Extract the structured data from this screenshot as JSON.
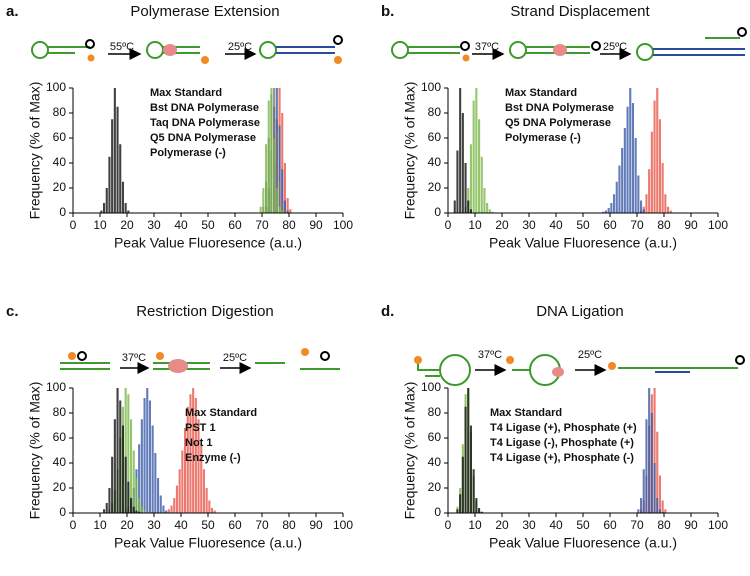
{
  "chart_data": [
    {
      "type": "histogram",
      "panel": "a.",
      "title": "Polymerase Extension",
      "annotations": [
        "55ºC",
        "25ºC"
      ],
      "x_label": "Peak Value Fluoresence (a.u.)",
      "y_label": "Frequency (% of Max)",
      "xlim": [
        0,
        100
      ],
      "xticks": [
        0,
        10,
        20,
        30,
        40,
        50,
        60,
        70,
        80,
        90,
        100
      ],
      "ylim": [
        0,
        100
      ],
      "yticks": [
        0,
        20,
        40,
        60,
        80,
        100
      ],
      "series": [
        {
          "name": "Max Standard",
          "color": "#e8574a",
          "bins": [
            72,
            73,
            74,
            75,
            76,
            77,
            78,
            79,
            80,
            81
          ],
          "values": [
            5,
            15,
            40,
            75,
            100,
            80,
            40,
            12,
            3
          ]
        },
        {
          "name": "Bst DNA Polymerase",
          "color": "#3a5ba8",
          "bins": [
            71,
            72,
            73,
            74,
            75,
            76,
            77,
            78,
            79,
            80
          ],
          "values": [
            5,
            20,
            50,
            85,
            100,
            70,
            35,
            10,
            2
          ]
        },
        {
          "name": "Taq DNA Polymerase",
          "color": "#777777",
          "bins": [
            70,
            71,
            72,
            73,
            74,
            75,
            76,
            77,
            78,
            79
          ],
          "values": [
            5,
            25,
            60,
            95,
            100,
            65,
            25,
            8,
            2
          ]
        },
        {
          "name": "Q5 DNA Polymerase",
          "color": "#7ab648",
          "bins": [
            69,
            70,
            71,
            72,
            73,
            74,
            75,
            76,
            77,
            78
          ],
          "values": [
            5,
            20,
            55,
            90,
            100,
            60,
            20,
            5,
            2
          ]
        },
        {
          "name": "Polymerase (-)",
          "color": "#111111",
          "bins": [
            10,
            11,
            12,
            13,
            14,
            15,
            16,
            17,
            18,
            19,
            20,
            21
          ],
          "values": [
            2,
            8,
            20,
            45,
            75,
            100,
            85,
            55,
            25,
            8,
            2
          ]
        }
      ]
    },
    {
      "type": "histogram",
      "panel": "b.",
      "title": "Strand Displacement",
      "annotations": [
        "37ºC",
        "25ºC"
      ],
      "x_label": "Peak Value Fluoresence (a.u.)",
      "y_label": "Frequency (% of Max)",
      "xlim": [
        0,
        100
      ],
      "xticks": [
        0,
        10,
        20,
        30,
        40,
        50,
        60,
        70,
        80,
        90,
        100
      ],
      "ylim": [
        0,
        100
      ],
      "yticks": [
        0,
        20,
        40,
        60,
        80,
        100
      ],
      "series": [
        {
          "name": "Max Standard",
          "color": "#e8574a",
          "bins": [
            71,
            72,
            73,
            74,
            75,
            76,
            77,
            78,
            79,
            80,
            81,
            82,
            83
          ],
          "values": [
            2,
            5,
            15,
            35,
            65,
            90,
            100,
            75,
            40,
            15,
            5,
            2
          ]
        },
        {
          "name": "Bst DNA Polymerase",
          "color": "#3a5ba8",
          "bins": [
            57,
            58,
            59,
            60,
            61,
            62,
            63,
            64,
            65,
            66,
            67,
            68,
            69,
            70,
            71,
            72,
            73
          ],
          "values": [
            1,
            2,
            4,
            8,
            15,
            25,
            38,
            52,
            68,
            85,
            100,
            88,
            60,
            30,
            10,
            3
          ]
        },
        {
          "name": "Q5 DNA Polymerase",
          "color": "#7ab648",
          "bins": [
            6,
            7,
            8,
            9,
            10,
            11,
            12,
            13,
            14,
            15,
            16,
            17
          ],
          "values": [
            5,
            20,
            55,
            90,
            100,
            75,
            45,
            20,
            8,
            3,
            1
          ]
        },
        {
          "name": "Polymerase (-)",
          "color": "#111111",
          "bins": [
            2,
            3,
            4,
            5,
            6,
            7,
            8,
            9
          ],
          "values": [
            10,
            50,
            100,
            80,
            40,
            10,
            3
          ]
        }
      ]
    },
    {
      "type": "histogram",
      "panel": "c.",
      "title": "Restriction Digestion",
      "annotations": [
        "37ºC",
        "25ºC"
      ],
      "x_label": "Peak Value Fluoresence (a.u.)",
      "y_label": "Frequency (% of Max)",
      "xlim": [
        0,
        100
      ],
      "xticks": [
        0,
        10,
        20,
        30,
        40,
        50,
        60,
        70,
        80,
        90,
        100
      ],
      "ylim": [
        0,
        100
      ],
      "yticks": [
        0,
        20,
        40,
        60,
        80,
        100
      ],
      "series": [
        {
          "name": "Max Standard",
          "color": "#e8574a",
          "bins": [
            34,
            35,
            36,
            37,
            38,
            39,
            40,
            41,
            42,
            43,
            44,
            45,
            46,
            47,
            48,
            49,
            50,
            51,
            52,
            53
          ],
          "values": [
            1,
            3,
            6,
            12,
            22,
            35,
            50,
            68,
            85,
            95,
            100,
            92,
            75,
            55,
            35,
            20,
            10,
            4,
            2
          ]
        },
        {
          "name": "PST 1",
          "color": "#3a5ba8",
          "bins": [
            19,
            20,
            21,
            22,
            23,
            24,
            25,
            26,
            27,
            28,
            29,
            30,
            31,
            32,
            33,
            34,
            35
          ],
          "values": [
            2,
            5,
            10,
            20,
            35,
            55,
            75,
            92,
            100,
            90,
            70,
            48,
            28,
            14,
            6,
            2
          ]
        },
        {
          "name": "Not 1",
          "color": "#7ab648",
          "bins": [
            13,
            14,
            15,
            16,
            17,
            18,
            19,
            20,
            21,
            22,
            23,
            24,
            25,
            26,
            27
          ],
          "values": [
            3,
            8,
            18,
            35,
            60,
            85,
            100,
            95,
            75,
            50,
            28,
            12,
            5,
            2
          ]
        },
        {
          "name": "Enzyme (-)",
          "color": "#111111",
          "bins": [
            11,
            12,
            13,
            14,
            15,
            16,
            17,
            18,
            19,
            20,
            21,
            22,
            23,
            24,
            25
          ],
          "values": [
            3,
            8,
            20,
            45,
            75,
            100,
            90,
            70,
            45,
            25,
            12,
            5,
            2,
            1
          ]
        }
      ]
    },
    {
      "type": "histogram",
      "panel": "d.",
      "title": "DNA Ligation",
      "annotations": [
        "37ºC",
        "25ºC"
      ],
      "x_label": "Peak Value Fluoresence (a.u.)",
      "y_label": "Frequency (% of Max)",
      "xlim": [
        0,
        100
      ],
      "xticks": [
        0,
        10,
        20,
        30,
        40,
        50,
        60,
        70,
        80,
        90,
        100
      ],
      "ylim": [
        0,
        100
      ],
      "yticks": [
        0,
        20,
        40,
        60,
        80,
        100
      ],
      "series": [
        {
          "name": "Max Standard",
          "color": "#e8574a",
          "bins": [
            71,
            72,
            73,
            74,
            75,
            76,
            77,
            78,
            79,
            80,
            81
          ],
          "values": [
            3,
            10,
            30,
            70,
            95,
            100,
            65,
            30,
            10,
            3
          ]
        },
        {
          "name": "T4 Ligase (+), Phosphate (+)",
          "color": "#3a5ba8",
          "bins": [
            70,
            71,
            72,
            73,
            74,
            75,
            76,
            77,
            78,
            79,
            80
          ],
          "values": [
            3,
            12,
            35,
            75,
            100,
            80,
            40,
            12,
            3,
            1
          ]
        },
        {
          "name": "T4 Ligase (-), Phosphate (+)",
          "color": "#7ab648",
          "bins": [
            3,
            4,
            5,
            6,
            7,
            8,
            9,
            10,
            11,
            12,
            13
          ],
          "values": [
            5,
            20,
            55,
            95,
            100,
            65,
            30,
            10,
            3,
            1
          ]
        },
        {
          "name": "T4 Ligase (+), Phosphate (-)",
          "color": "#111111",
          "bins": [
            3,
            4,
            5,
            6,
            7,
            8,
            9,
            10,
            11,
            12,
            13
          ],
          "values": [
            3,
            15,
            45,
            85,
            100,
            70,
            35,
            12,
            4,
            1
          ]
        }
      ]
    }
  ]
}
